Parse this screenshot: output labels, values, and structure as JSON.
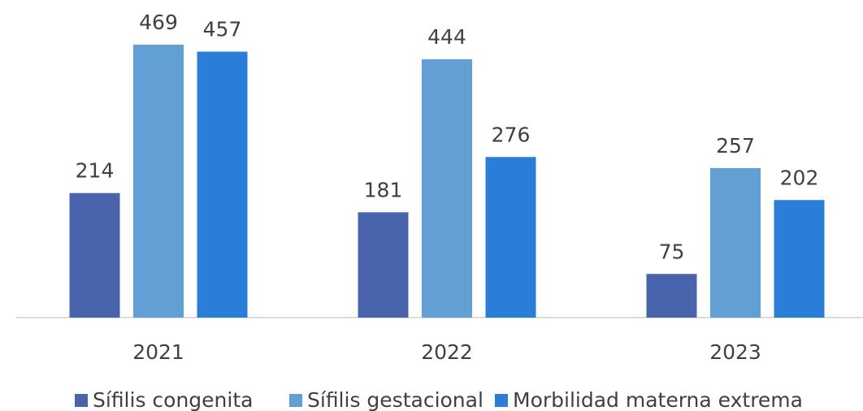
{
  "chart_data": {
    "type": "bar",
    "categories": [
      "2021",
      "2022",
      "2023"
    ],
    "series": [
      {
        "name": "Sífilis congenita",
        "color": "#4a63ad",
        "values": [
          214,
          181,
          75
        ]
      },
      {
        "name": "Sífilis gestacional",
        "color": "#619fd4",
        "values": [
          469,
          444,
          257
        ]
      },
      {
        "name": "Morbilidad materna extrema",
        "color": "#2a7ed8",
        "values": [
          457,
          276,
          202
        ]
      }
    ]
  }
}
